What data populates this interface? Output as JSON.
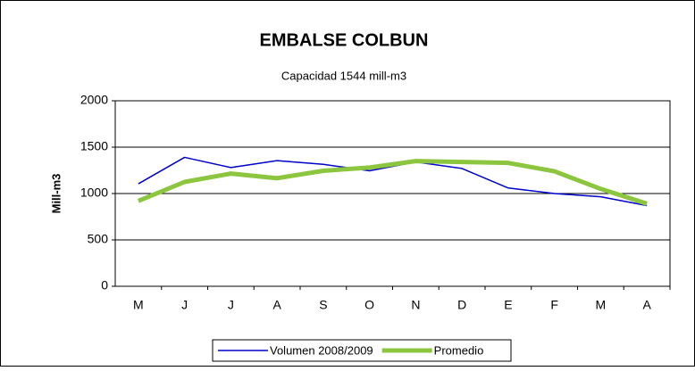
{
  "chart_data": {
    "type": "line",
    "title": "EMBALSE COLBUN",
    "subtitle": "Capacidad  1544 mill-m3",
    "y_label": "Mill-m3",
    "categories": [
      "M",
      "J",
      "J",
      "A",
      "S",
      "O",
      "N",
      "D",
      "E",
      "F",
      "M",
      "A"
    ],
    "series": [
      {
        "name": "Volumen  2008/2009",
        "color": "#0000cc",
        "width": 1.5,
        "values": [
          1105,
          1390,
          1280,
          1355,
          1315,
          1245,
          1340,
          1270,
          1060,
          1000,
          965,
          870
        ]
      },
      {
        "name": "Promedio",
        "color": "#8cc63f",
        "width": 5,
        "values": [
          920,
          1125,
          1215,
          1165,
          1245,
          1280,
          1350,
          1340,
          1330,
          1240,
          1050,
          890
        ]
      }
    ],
    "ylim": [
      0,
      2000
    ],
    "yticks": [
      0,
      500,
      1000,
      1500,
      2000
    ],
    "grid": true,
    "legend": "bottom"
  }
}
